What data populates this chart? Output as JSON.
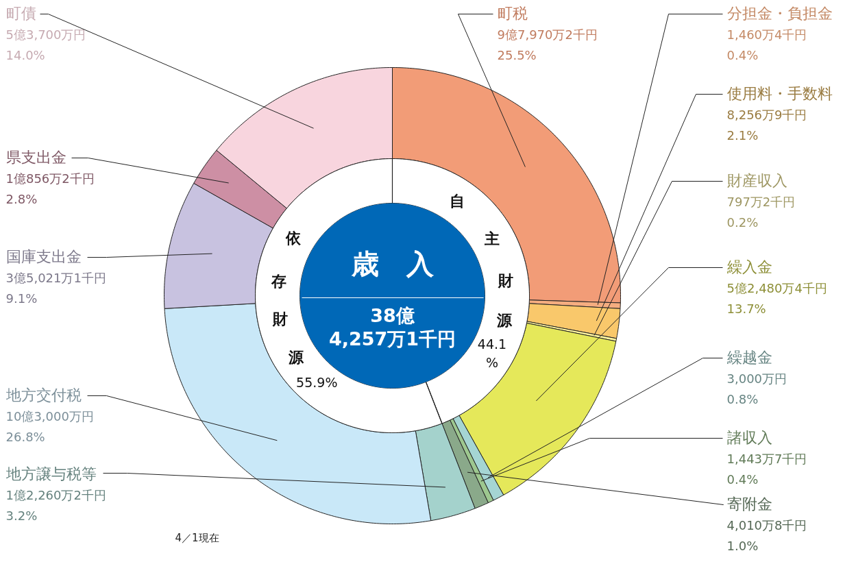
{
  "chart_data": [
    {
      "type": "donut",
      "categories": [
        "町税",
        "分担金・負担金",
        "使用料・手数料",
        "財産収入",
        "繰入金",
        "繰越金",
        "諸収入",
        "寄附金",
        "地方譲与税等",
        "地方交付税",
        "国庫支出金",
        "県支出金",
        "町債"
      ],
      "values": [
        25.5,
        0.4,
        2.1,
        0.2,
        13.7,
        0.8,
        0.4,
        1.0,
        3.2,
        26.8,
        9.1,
        2.8,
        14.0
      ],
      "colors": [
        "#f29c77",
        "#f5ad80",
        "#f9c86b",
        "#fff5a0",
        "#e5e85a",
        "#a5d5d3",
        "#9dc78f",
        "#8aa98a",
        "#a4d2cc",
        "#c9e8f8",
        "#c8c2e0",
        "#cd8fa4",
        "#f8d5de"
      ],
      "value_labels": [
        "9億7,970万2千円\n25.5%",
        "1,460万4千円\n0.4%",
        "8,256万9千円\n2.1%",
        "797万2千円\n0.2%",
        "5億2,480万4千円\n13.7%",
        "3,000万円\n0.8%",
        "1,443万7千円\n0.4%",
        "4,010万8千円\n1.0%",
        "1億2,260万2千円\n3.2%",
        "10億3,000万円\n26.8%",
        "3億5,021万1千円\n9.1%",
        "1億856万2千円\n2.8%",
        "5億3,700万円\n14.0%"
      ],
      "annotations": [
        "4／1現在"
      ]
    },
    {
      "type": "donut",
      "title": "歳　入",
      "subtitle": "38億\n4,257万1千円",
      "categories": [
        "自主財源",
        "依存財源"
      ],
      "values": [
        44.1,
        55.9
      ],
      "colors": [
        "#ffffff",
        "#ffffff"
      ],
      "value_labels": [
        "44.1\n%",
        "55.9%"
      ]
    }
  ]
}
